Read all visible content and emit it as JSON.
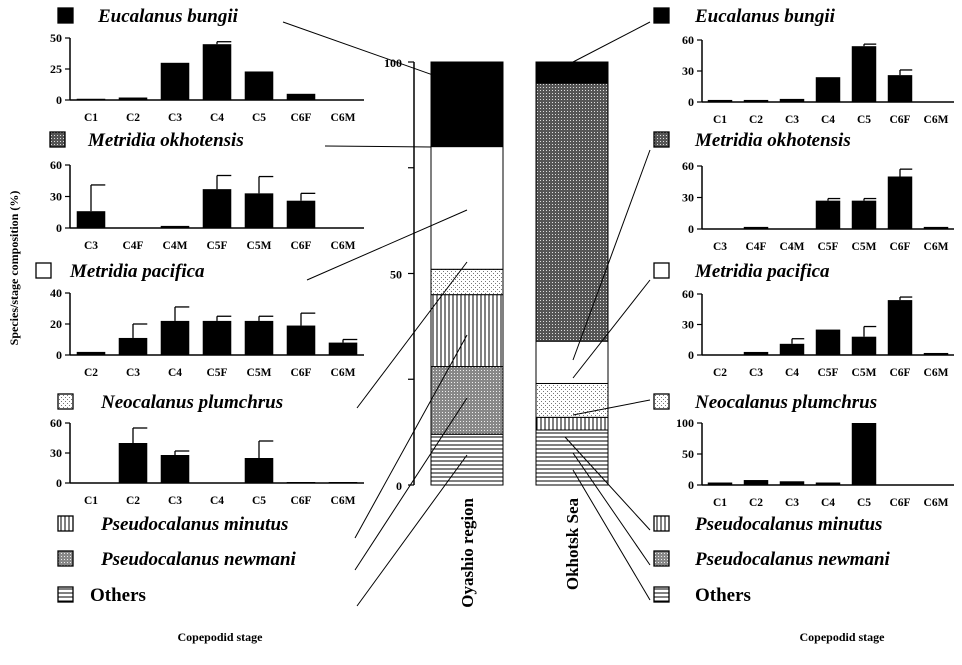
{
  "ylabel": "Species/stage composition (%)",
  "xlabel_left": "Copepodid stage",
  "xlabel_right": "Copepodid stage",
  "legend": [
    {
      "id": "eb",
      "name": "Eucalanus bungii",
      "italic": true,
      "pattern": "solid"
    },
    {
      "id": "mo",
      "name": "Metridia okhotensis",
      "italic": true,
      "pattern": "dense-dots"
    },
    {
      "id": "mp",
      "name": "Metridia pacifica",
      "italic": true,
      "pattern": "white"
    },
    {
      "id": "np",
      "name": "Neocalanus plumchrus",
      "italic": true,
      "pattern": "light-dots"
    },
    {
      "id": "pm",
      "name": "Pseudocalanus minutus",
      "italic": true,
      "pattern": "vertical-lines"
    },
    {
      "id": "pn",
      "name": "Pseudocalanus newmani",
      "italic": true,
      "pattern": "grey-dots"
    },
    {
      "id": "ot",
      "name": "Others",
      "italic": false,
      "pattern": "horizontal-lines"
    }
  ],
  "chart_data": [
    {
      "type": "bar",
      "panel": "left-1",
      "species": "Eucalanus bungii",
      "categories": [
        "C1",
        "C2",
        "C3",
        "C4",
        "C5",
        "C6F",
        "C6M"
      ],
      "values": [
        1,
        2,
        30,
        45,
        23,
        5,
        0
      ],
      "errors": [
        0,
        0,
        0,
        2,
        0,
        0,
        0
      ],
      "yticks": [
        0,
        25,
        50
      ],
      "ylim": [
        0,
        50
      ]
    },
    {
      "type": "bar",
      "panel": "left-2",
      "species": "Metridia okhotensis",
      "categories": [
        "C3",
        "C4F",
        "C4M",
        "C5F",
        "C5M",
        "C6F",
        "C6M"
      ],
      "values": [
        16,
        0,
        2,
        37,
        33,
        26,
        0
      ],
      "errors": [
        25,
        0,
        0,
        13,
        16,
        7,
        0
      ],
      "yticks": [
        0,
        30,
        60
      ],
      "ylim": [
        0,
        60
      ]
    },
    {
      "type": "bar",
      "panel": "left-3",
      "species": "Metridia pacifica",
      "categories": [
        "C2",
        "C3",
        "C4",
        "C5F",
        "C5M",
        "C6F",
        "C6M"
      ],
      "values": [
        2,
        11,
        22,
        22,
        22,
        19,
        8
      ],
      "errors": [
        0,
        9,
        9,
        3,
        3,
        8,
        2
      ],
      "yticks": [
        0,
        20,
        40
      ],
      "ylim": [
        0,
        40
      ]
    },
    {
      "type": "bar",
      "panel": "left-4",
      "species": "Neocalanus plumchrus",
      "categories": [
        "C1",
        "C2",
        "C3",
        "C4",
        "C5",
        "C6F",
        "C6M"
      ],
      "values": [
        0,
        40,
        28,
        0,
        25,
        1,
        1
      ],
      "errors": [
        0,
        15,
        4,
        0,
        17,
        0,
        0
      ],
      "yticks": [
        0,
        30,
        60
      ],
      "ylim": [
        0,
        60
      ]
    },
    {
      "type": "bar",
      "panel": "right-1",
      "species": "Eucalanus bungii",
      "categories": [
        "C1",
        "C2",
        "C3",
        "C4",
        "C5",
        "C6F",
        "C6M"
      ],
      "values": [
        2,
        2,
        3,
        24,
        54,
        26,
        0
      ],
      "errors": [
        0,
        0,
        0,
        0,
        2,
        5,
        0
      ],
      "yticks": [
        0,
        30,
        60
      ],
      "ylim": [
        0,
        60
      ]
    },
    {
      "type": "bar",
      "panel": "right-2",
      "species": "Metridia okhotensis",
      "categories": [
        "C3",
        "C4F",
        "C4M",
        "C5F",
        "C5M",
        "C6F",
        "C6M"
      ],
      "values": [
        0,
        2,
        0,
        27,
        27,
        50,
        2
      ],
      "errors": [
        0,
        0,
        0,
        2,
        2,
        7,
        0
      ],
      "yticks": [
        0,
        30,
        60
      ],
      "ylim": [
        0,
        60
      ]
    },
    {
      "type": "bar",
      "panel": "right-3",
      "species": "Metridia pacifica",
      "categories": [
        "C2",
        "C3",
        "C4",
        "C5F",
        "C5M",
        "C6F",
        "C6M"
      ],
      "values": [
        0,
        3,
        11,
        25,
        18,
        54,
        2
      ],
      "errors": [
        0,
        0,
        5,
        0,
        10,
        3,
        0
      ],
      "yticks": [
        0,
        30,
        60
      ],
      "ylim": [
        0,
        60
      ]
    },
    {
      "type": "bar",
      "panel": "right-4",
      "species": "Neocalanus plumchrus",
      "categories": [
        "C1",
        "C2",
        "C3",
        "C4",
        "C5",
        "C6F",
        "C6M"
      ],
      "values": [
        4,
        8,
        6,
        4,
        100,
        0,
        0
      ],
      "errors": [
        0,
        0,
        0,
        0,
        0,
        0,
        0
      ],
      "yticks": [
        0,
        50,
        100
      ],
      "ylim": [
        0,
        100
      ]
    },
    {
      "type": "stacked-bar",
      "panel": "composition",
      "categories": [
        "Oyashio region",
        "Okhotsk Sea"
      ],
      "yticks": [
        0,
        50,
        100
      ],
      "ylim": [
        0,
        100
      ],
      "series": [
        {
          "name": "Others",
          "values": [
            12,
            13
          ]
        },
        {
          "name": "Pseudocalanus newmani",
          "values": [
            16,
            0
          ]
        },
        {
          "name": "Pseudocalanus minutus",
          "values": [
            17,
            3
          ]
        },
        {
          "name": "Neocalanus plumchrus",
          "values": [
            6,
            8
          ]
        },
        {
          "name": "Metridia pacifica",
          "values": [
            29,
            10
          ]
        },
        {
          "name": "Metridia okhotensis",
          "values": [
            0,
            61
          ]
        },
        {
          "name": "Eucalanus bungii",
          "values": [
            20,
            5
          ]
        }
      ]
    }
  ]
}
